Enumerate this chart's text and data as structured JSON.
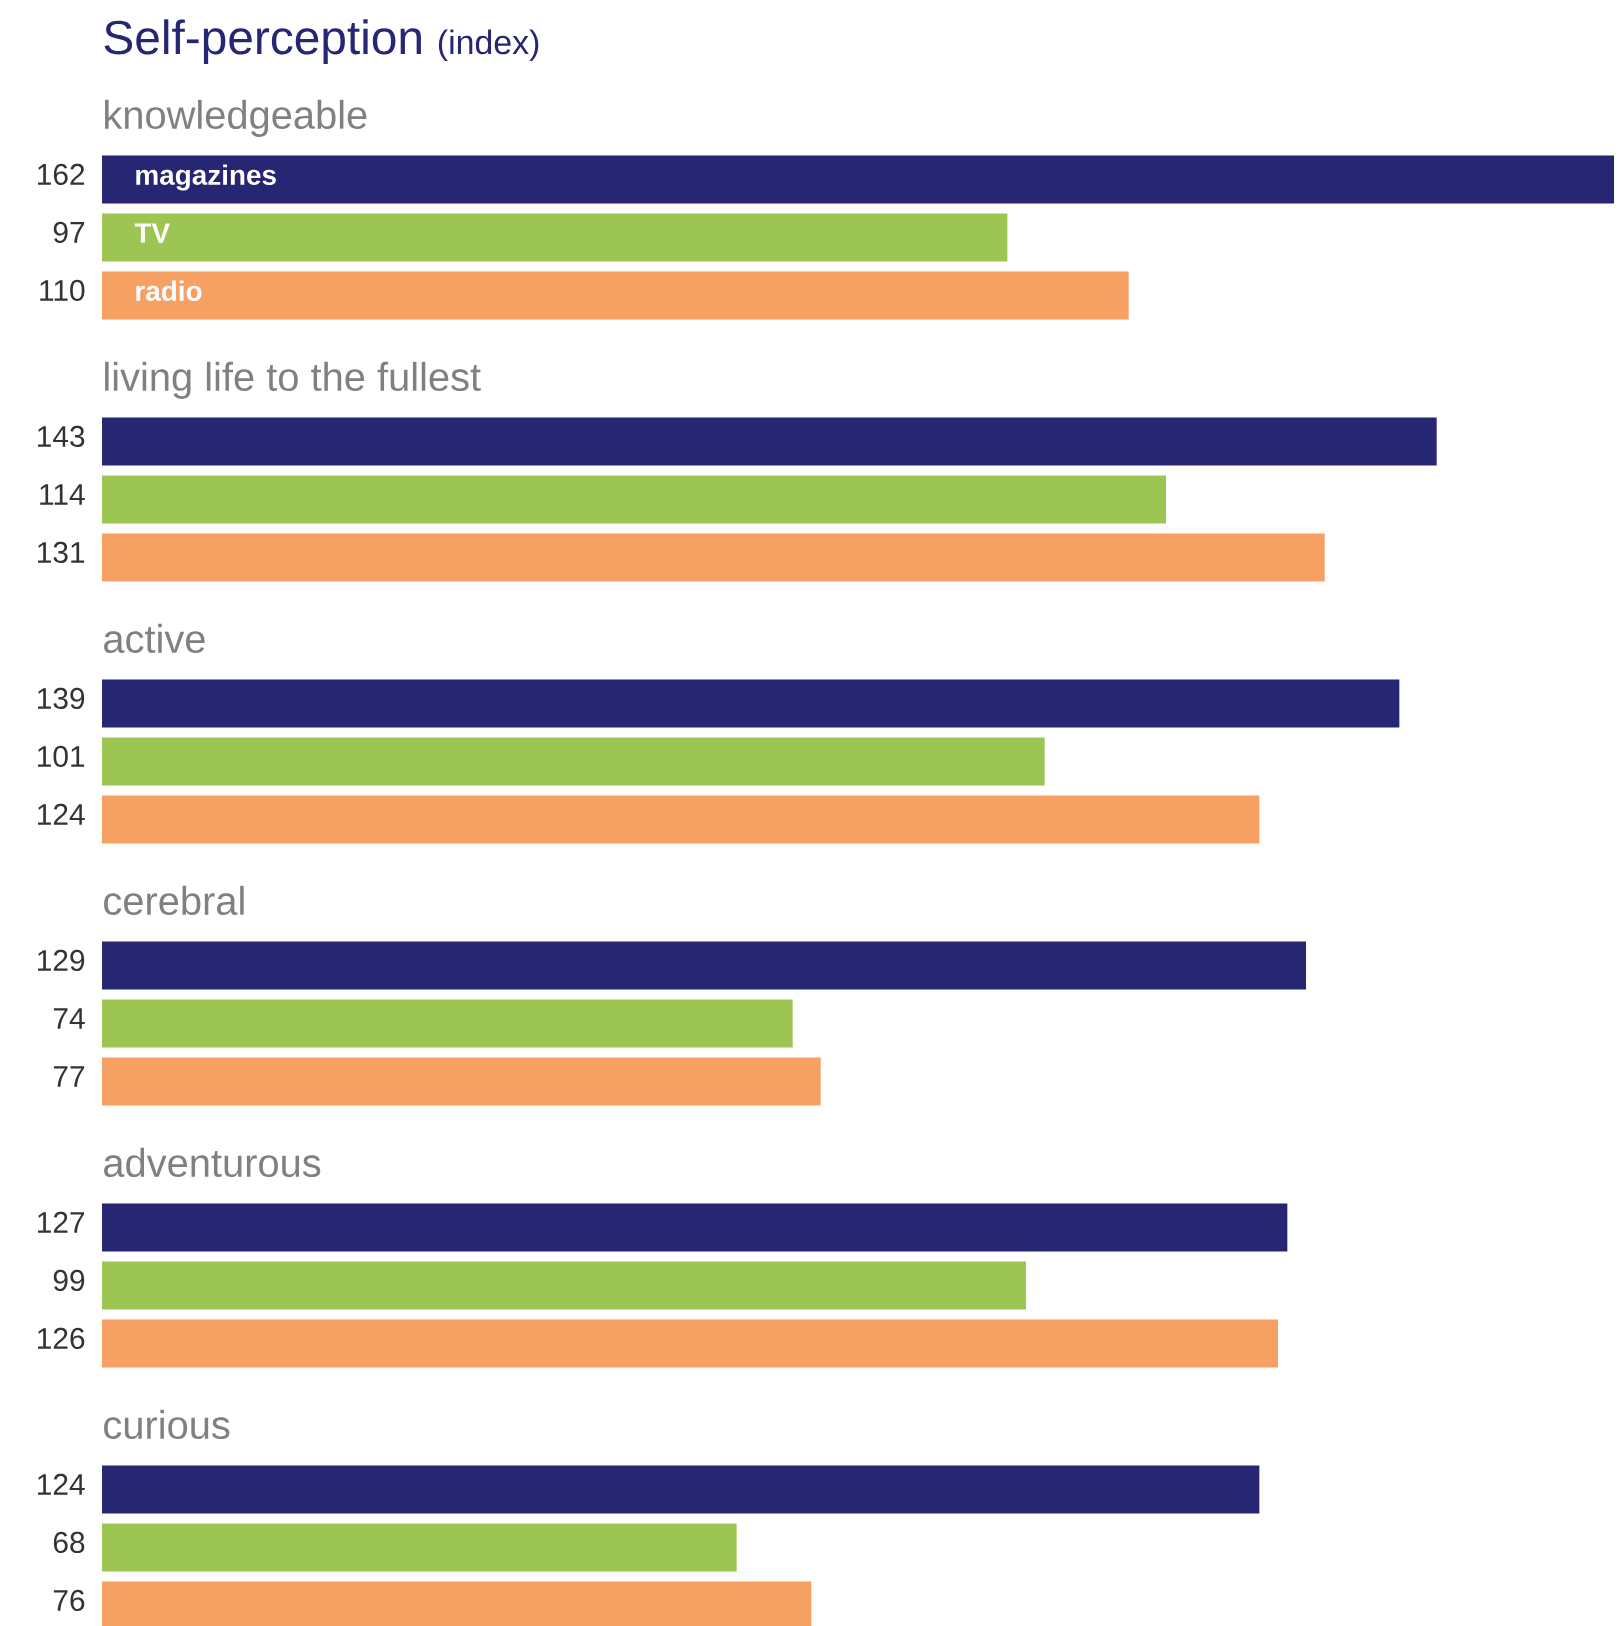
{
  "chart_data": {
    "type": "bar",
    "orientation": "horizontal",
    "title": "Self-perception",
    "subtitle": "(index)",
    "categories": [
      "knowledgeable",
      "living life to the fullest",
      "active",
      "cerebral",
      "adventurous",
      "curious"
    ],
    "series": [
      {
        "name": "magazines",
        "color": "#262673",
        "values": [
          162,
          143,
          139,
          129,
          127,
          124
        ]
      },
      {
        "name": "TV",
        "color": "#9dc553",
        "values": [
          97,
          114,
          101,
          74,
          99,
          68
        ]
      },
      {
        "name": "radio",
        "color": "#f6a064",
        "values": [
          110,
          131,
          124,
          77,
          126,
          76
        ]
      }
    ],
    "data_labels": true
  }
}
